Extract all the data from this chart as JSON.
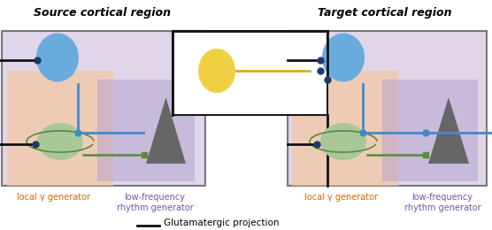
{
  "title_left": "Source cortical region",
  "title_right": "Target cortical region",
  "label_orange": "local γ generator",
  "label_purple": "low-frequency\nrhythm generator",
  "legend_text": "Glutamatergic projection",
  "bg_color": "#ffffff",
  "purple_bg": "#c8b4d8",
  "orange_bg": "#f5c8a0",
  "box_border": "#1a1a1a",
  "blue_circle_color": "#6aabde",
  "green_ellipse_color": "#a8c898",
  "triangle_color": "#666666",
  "blue_line_color": "#4488cc",
  "black_line_color": "#111111",
  "orange_line_color": "#ddaa22",
  "yellow_circle_color": "#f0d040",
  "dot_color": "#1a3a6a"
}
